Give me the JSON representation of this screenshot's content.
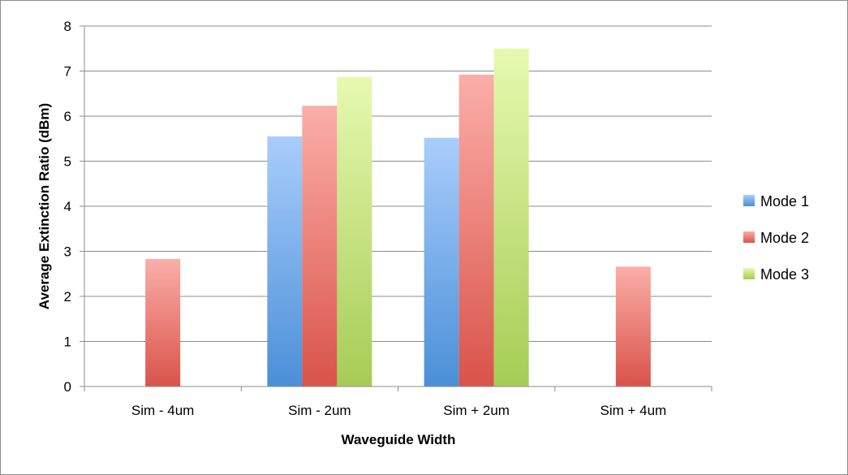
{
  "chart_data": {
    "type": "bar",
    "title": "",
    "xlabel": "Waveguide Width",
    "ylabel": "Average Extinction Ratio (dBm)",
    "categories": [
      "Sim - 4um",
      "Sim - 2um",
      "Sim + 2um",
      "Sim + 4um"
    ],
    "ylim": [
      0,
      8
    ],
    "yticks": [
      "0",
      "1",
      "2",
      "3",
      "4",
      "5",
      "6",
      "7",
      "8"
    ],
    "grid": true,
    "legend_position": "right",
    "series": [
      {
        "name": "Mode 1",
        "color_top": "#a9cdfb",
        "color_bottom": "#4a8fd8",
        "values": [
          null,
          5.55,
          5.52,
          null
        ]
      },
      {
        "name": "Mode 2",
        "color_top": "#fbaea8",
        "color_bottom": "#d9534a",
        "values": [
          2.83,
          6.23,
          6.92,
          2.66
        ]
      },
      {
        "name": "Mode 3",
        "color_top": "#e7f9b0",
        "color_bottom": "#a6cc55",
        "values": [
          null,
          6.87,
          7.5,
          null
        ]
      }
    ]
  }
}
